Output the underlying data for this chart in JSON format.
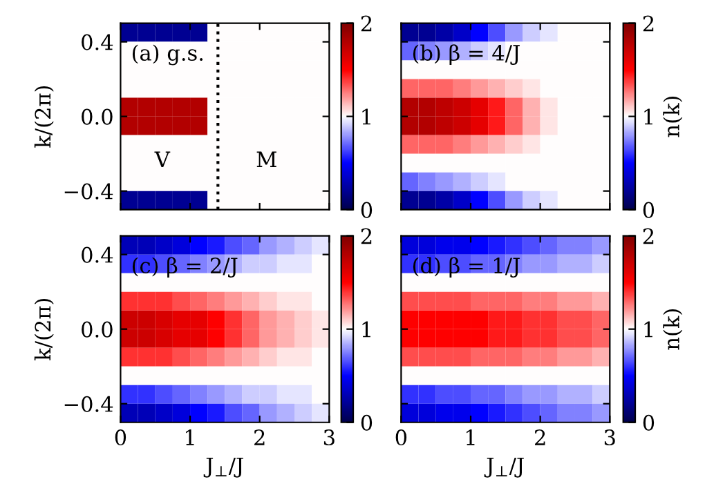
{
  "chart_data": [
    {
      "type": "heatmap",
      "title": "(a) g.s.",
      "ylabel": "k/(2π)",
      "xlim": [
        0,
        3
      ],
      "xticks": [
        0,
        1,
        2,
        3
      ],
      "ylim": [
        -0.5,
        0.5
      ],
      "yticks": [
        {
          "value": -0.4,
          "label": "−0.4"
        },
        {
          "value": 0.0,
          "label": "0.0"
        },
        {
          "value": 0.4,
          "label": "0.4"
        }
      ],
      "clim": [
        0,
        2
      ],
      "cticks": [
        0,
        1,
        2
      ],
      "tick_labels": "y",
      "ref_lines": [
        {
          "axis": "x",
          "value": 1.4,
          "label": null,
          "color": "#000000",
          "line_style": "dotted"
        }
      ],
      "annotations": [
        "V",
        "M"
      ],
      "cells": [
        [
          0.2,
          0.2,
          0.2,
          0.2,
          0.2,
          1,
          1,
          1,
          1,
          1,
          1,
          1
        ],
        [
          1,
          1,
          1,
          1,
          1,
          1,
          1,
          1,
          1,
          1,
          1,
          1
        ],
        [
          1,
          1,
          1,
          1,
          1,
          1,
          1,
          1,
          1,
          1,
          1,
          1
        ],
        [
          1,
          1,
          1,
          1,
          1,
          1,
          1,
          1,
          1,
          1,
          1,
          1
        ],
        [
          1.8,
          1.8,
          1.8,
          1.8,
          1.8,
          1,
          1,
          1,
          1,
          1,
          1,
          1
        ],
        [
          1.8,
          1.8,
          1.8,
          1.8,
          1.8,
          1,
          1,
          1,
          1,
          1,
          1,
          1
        ],
        [
          1,
          1,
          1,
          1,
          1,
          1,
          1,
          1,
          1,
          1,
          1,
          1
        ],
        [
          1,
          1,
          1,
          1,
          1,
          1,
          1,
          1,
          1,
          1,
          1,
          1
        ],
        [
          1,
          1,
          1,
          1,
          1,
          1,
          1,
          1,
          1,
          1,
          1,
          1
        ],
        [
          0.2,
          0.2,
          0.2,
          0.2,
          0.2,
          1,
          1,
          1,
          1,
          1,
          1,
          1
        ]
      ]
    },
    {
      "type": "heatmap",
      "title": "(b) β = 4/J",
      "clabel": "n(k)",
      "xlim": [
        0,
        3
      ],
      "xticks": [
        0,
        1,
        2,
        3
      ],
      "ylim": [
        -0.5,
        0.5
      ],
      "yticks": [
        -0.4,
        0.0,
        0.4
      ],
      "clim": [
        0,
        2
      ],
      "cticks": [
        0,
        1,
        2
      ],
      "tick_labels": false,
      "cells": [
        [
          0.2,
          0.2,
          0.25,
          0.35,
          0.5,
          0.65,
          0.8,
          0.9,
          0.95,
          1,
          1,
          1
        ],
        [
          0.7,
          0.75,
          0.8,
          0.85,
          0.9,
          0.95,
          1,
          1,
          1,
          1,
          1,
          1
        ],
        [
          1,
          1,
          1,
          1,
          1,
          1,
          1,
          1,
          1,
          1,
          1,
          1
        ],
        [
          1.3,
          1.3,
          1.3,
          1.25,
          1.2,
          1.15,
          1.1,
          1.05,
          1,
          1,
          1,
          1
        ],
        [
          1.8,
          1.8,
          1.75,
          1.7,
          1.6,
          1.45,
          1.3,
          1.15,
          1.05,
          1,
          1,
          1
        ],
        [
          1.8,
          1.8,
          1.75,
          1.7,
          1.6,
          1.45,
          1.3,
          1.15,
          1.05,
          1,
          1,
          1
        ],
        [
          1.3,
          1.3,
          1.3,
          1.25,
          1.2,
          1.15,
          1.1,
          1.05,
          1,
          1,
          1,
          1
        ],
        [
          1,
          1,
          1,
          1,
          1,
          1,
          1,
          1,
          1,
          1,
          1,
          1
        ],
        [
          0.7,
          0.75,
          0.8,
          0.85,
          0.9,
          0.95,
          1,
          1,
          1,
          1,
          1,
          1
        ],
        [
          0.2,
          0.2,
          0.25,
          0.35,
          0.5,
          0.65,
          0.8,
          0.9,
          0.95,
          1,
          1,
          1
        ]
      ]
    },
    {
      "type": "heatmap",
      "title": "(c) β = 2/J",
      "ylabel": "k/(2π)",
      "xlabel": "J$_{⊥}$/J",
      "xlim": [
        0,
        3
      ],
      "xticks": [
        0,
        1,
        2,
        3
      ],
      "ylim": [
        -0.5,
        0.5
      ],
      "yticks": [
        {
          "value": -0.4,
          "label": "−0.4"
        },
        {
          "value": 0.0,
          "label": "0.0"
        },
        {
          "value": 0.4,
          "label": "0.4"
        }
      ],
      "clim": [
        0,
        2
      ],
      "cticks": [
        0,
        1,
        2
      ],
      "cells": [
        [
          0.3,
          0.3,
          0.35,
          0.4,
          0.5,
          0.55,
          0.65,
          0.7,
          0.8,
          0.85,
          0.9,
          0.95
        ],
        [
          0.6,
          0.6,
          0.65,
          0.7,
          0.75,
          0.8,
          0.85,
          0.9,
          0.9,
          0.95,
          0.95,
          1
        ],
        [
          1,
          1,
          1,
          1,
          1,
          1,
          1,
          1,
          1,
          1,
          1,
          1
        ],
        [
          1.4,
          1.4,
          1.4,
          1.35,
          1.3,
          1.25,
          1.2,
          1.15,
          1.1,
          1.05,
          1.05,
          1
        ],
        [
          1.7,
          1.7,
          1.65,
          1.6,
          1.6,
          1.5,
          1.4,
          1.3,
          1.2,
          1.15,
          1.1,
          1.05
        ],
        [
          1.7,
          1.7,
          1.65,
          1.6,
          1.6,
          1.5,
          1.4,
          1.3,
          1.2,
          1.15,
          1.1,
          1.05
        ],
        [
          1.4,
          1.4,
          1.4,
          1.35,
          1.3,
          1.25,
          1.2,
          1.15,
          1.1,
          1.05,
          1.05,
          1
        ],
        [
          1,
          1,
          1,
          1,
          1,
          1,
          1,
          1,
          1,
          1,
          1,
          1
        ],
        [
          0.6,
          0.6,
          0.65,
          0.7,
          0.75,
          0.8,
          0.85,
          0.9,
          0.9,
          0.95,
          0.95,
          1
        ],
        [
          0.3,
          0.3,
          0.35,
          0.4,
          0.5,
          0.55,
          0.65,
          0.7,
          0.8,
          0.85,
          0.9,
          0.95
        ]
      ]
    },
    {
      "type": "heatmap",
      "title": "(d) β = 1/J",
      "xlabel": "J$_{⊥}$/J",
      "clabel": "n(k)",
      "xlim": [
        0,
        3
      ],
      "xticks": [
        0,
        1,
        2,
        3
      ],
      "ylim": [
        -0.5,
        0.5
      ],
      "yticks": [
        -0.4,
        0.0,
        0.4
      ],
      "clim": [
        0,
        2
      ],
      "cticks": [
        0,
        1,
        2
      ],
      "tick_labels": "x",
      "cells": [
        [
          0.4,
          0.4,
          0.45,
          0.45,
          0.5,
          0.55,
          0.6,
          0.65,
          0.7,
          0.75,
          0.75,
          0.8
        ],
        [
          0.6,
          0.6,
          0.65,
          0.65,
          0.7,
          0.7,
          0.75,
          0.8,
          0.8,
          0.85,
          0.85,
          0.9
        ],
        [
          1,
          1,
          1,
          1,
          1,
          1,
          1,
          1,
          1,
          1,
          1,
          1
        ],
        [
          1.35,
          1.35,
          1.35,
          1.35,
          1.3,
          1.3,
          1.3,
          1.25,
          1.25,
          1.2,
          1.2,
          1.15
        ],
        [
          1.5,
          1.5,
          1.5,
          1.5,
          1.5,
          1.45,
          1.45,
          1.4,
          1.4,
          1.35,
          1.35,
          1.3
        ],
        [
          1.5,
          1.5,
          1.5,
          1.5,
          1.5,
          1.45,
          1.45,
          1.4,
          1.4,
          1.35,
          1.35,
          1.3
        ],
        [
          1.35,
          1.35,
          1.35,
          1.35,
          1.3,
          1.3,
          1.3,
          1.25,
          1.25,
          1.2,
          1.2,
          1.15
        ],
        [
          1,
          1,
          1,
          1,
          1,
          1,
          1,
          1,
          1,
          1,
          1,
          1
        ],
        [
          0.6,
          0.6,
          0.65,
          0.65,
          0.7,
          0.7,
          0.75,
          0.8,
          0.8,
          0.85,
          0.85,
          0.9
        ],
        [
          0.4,
          0.4,
          0.45,
          0.45,
          0.5,
          0.55,
          0.6,
          0.65,
          0.7,
          0.75,
          0.75,
          0.8
        ]
      ]
    }
  ]
}
